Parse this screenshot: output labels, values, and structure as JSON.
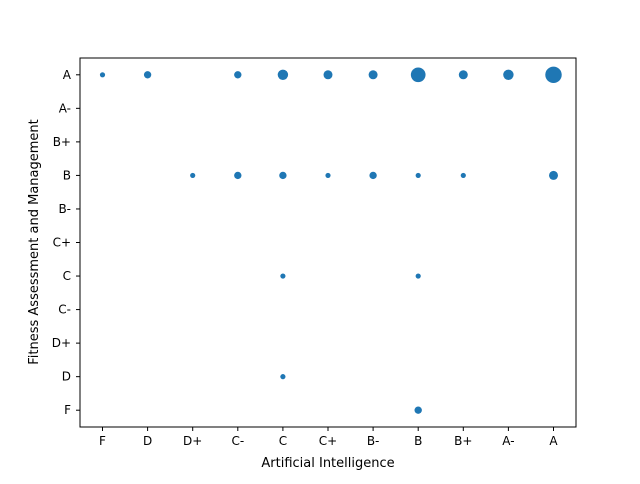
{
  "chart_data": {
    "type": "scatter",
    "xlabel": "Artificial Intelligence",
    "ylabel": "Fitness Assessment and Management",
    "x_categories": [
      "F",
      "D",
      "D+",
      "C-",
      "C",
      "C+",
      "B-",
      "B",
      "B+",
      "A-",
      "A"
    ],
    "y_categories": [
      "F",
      "D",
      "D+",
      "C-",
      "C",
      "C+",
      "B-",
      "B",
      "B+",
      "A-",
      "A"
    ],
    "grid": false,
    "legend": "none",
    "marker_color": "#1f77b4",
    "size_meaning": "number of students with that grade pair (relative)",
    "points": [
      {
        "x": "F",
        "y": "A",
        "count": 1
      },
      {
        "x": "D",
        "y": "A",
        "count": 2
      },
      {
        "x": "C-",
        "y": "A",
        "count": 2
      },
      {
        "x": "C",
        "y": "A",
        "count": 4
      },
      {
        "x": "C+",
        "y": "A",
        "count": 3
      },
      {
        "x": "B-",
        "y": "A",
        "count": 3
      },
      {
        "x": "B",
        "y": "A",
        "count": 8
      },
      {
        "x": "B+",
        "y": "A",
        "count": 3
      },
      {
        "x": "A-",
        "y": "A",
        "count": 4
      },
      {
        "x": "A",
        "y": "A",
        "count": 10
      },
      {
        "x": "D+",
        "y": "B",
        "count": 1
      },
      {
        "x": "C-",
        "y": "B",
        "count": 2
      },
      {
        "x": "C",
        "y": "B",
        "count": 2
      },
      {
        "x": "C+",
        "y": "B",
        "count": 1
      },
      {
        "x": "B-",
        "y": "B",
        "count": 2
      },
      {
        "x": "B",
        "y": "B",
        "count": 1
      },
      {
        "x": "B+",
        "y": "B",
        "count": 1
      },
      {
        "x": "A",
        "y": "B",
        "count": 3
      },
      {
        "x": "C",
        "y": "C",
        "count": 1
      },
      {
        "x": "B",
        "y": "C",
        "count": 1
      },
      {
        "x": "C",
        "y": "D",
        "count": 1
      },
      {
        "x": "B",
        "y": "F",
        "count": 2
      }
    ]
  }
}
